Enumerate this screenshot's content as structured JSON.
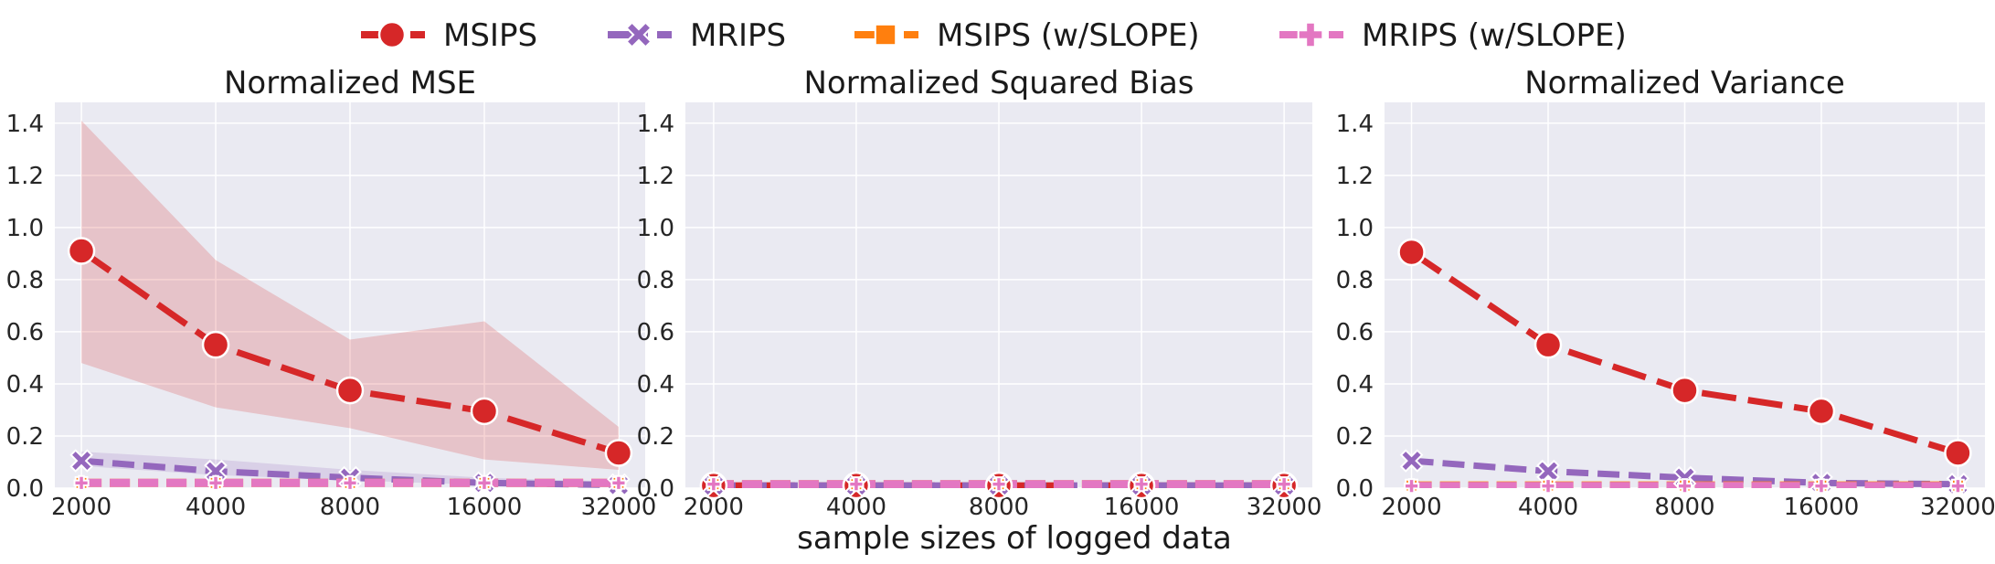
{
  "figure": {
    "xlabel": "sample sizes of logged data",
    "colors": {
      "background": "#ffffff",
      "panel": "#eaeaf2",
      "grid": "#ffffff",
      "msips": "#d62728",
      "mrips": "#9467bd",
      "msips_slope": "#ff7f0e",
      "mrips_slope": "#e377c2"
    }
  },
  "legend": {
    "placement": "top-center",
    "items": [
      {
        "label": "MSIPS",
        "marker": "circle",
        "color": "#d62728"
      },
      {
        "label": "MRIPS",
        "marker": "x",
        "color": "#9467bd"
      },
      {
        "label": "MSIPS (w/SLOPE)",
        "marker": "square",
        "color": "#ff7f0e"
      },
      {
        "label": "MRIPS (w/SLOPE)",
        "marker": "plus",
        "color": "#e377c2"
      }
    ]
  },
  "chart_data": [
    {
      "type": "line",
      "title": "Normalized MSE",
      "categories": [
        "2000",
        "4000",
        "8000",
        "16000",
        "32000"
      ],
      "ylim": [
        0,
        1.48
      ],
      "yticks": [
        "0.0",
        "0.2",
        "0.4",
        "0.6",
        "0.8",
        "1.0",
        "1.2",
        "1.4"
      ],
      "grid": true,
      "series": [
        {
          "name": "MSIPS",
          "values": [
            0.91,
            0.55,
            0.375,
            0.295,
            0.135
          ],
          "band_low": [
            0.48,
            0.31,
            0.23,
            0.11,
            0.07
          ],
          "band_high": [
            1.41,
            0.875,
            0.57,
            0.64,
            0.235
          ]
        },
        {
          "name": "MRIPS",
          "values": [
            0.105,
            0.065,
            0.04,
            0.02,
            0.012
          ],
          "band_low": [
            0.085,
            0.05,
            0.03,
            0.012,
            0.006
          ],
          "band_high": [
            0.14,
            0.11,
            0.07,
            0.04,
            0.025
          ]
        },
        {
          "name": "MSIPS (w/SLOPE)",
          "values": [
            0.02,
            0.02,
            0.02,
            0.02,
            0.02
          ]
        },
        {
          "name": "MRIPS (w/SLOPE)",
          "values": [
            0.02,
            0.02,
            0.02,
            0.02,
            0.02
          ]
        }
      ]
    },
    {
      "type": "line",
      "title": "Normalized Squared Bias",
      "categories": [
        "2000",
        "4000",
        "8000",
        "16000",
        "32000"
      ],
      "ylim": [
        0,
        1.48
      ],
      "yticks": [
        "0.0",
        "0.2",
        "0.4",
        "0.6",
        "0.8",
        "1.0",
        "1.2",
        "1.4"
      ],
      "grid": true,
      "series": [
        {
          "name": "MSIPS",
          "values": [
            0.01,
            0.01,
            0.01,
            0.01,
            0.01
          ]
        },
        {
          "name": "MRIPS",
          "values": [
            0.01,
            0.01,
            0.01,
            0.01,
            0.01
          ]
        },
        {
          "name": "MSIPS (w/SLOPE)",
          "values": [
            0.015,
            0.015,
            0.015,
            0.015,
            0.015
          ]
        },
        {
          "name": "MRIPS (w/SLOPE)",
          "values": [
            0.015,
            0.015,
            0.015,
            0.015,
            0.015
          ]
        }
      ]
    },
    {
      "type": "line",
      "title": "Normalized Variance",
      "categories": [
        "2000",
        "4000",
        "8000",
        "16000",
        "32000"
      ],
      "ylim": [
        0,
        1.48
      ],
      "yticks": [
        "0.0",
        "0.2",
        "0.4",
        "0.6",
        "0.8",
        "1.0",
        "1.2",
        "1.4"
      ],
      "grid": true,
      "series": [
        {
          "name": "MSIPS",
          "values": [
            0.905,
            0.55,
            0.375,
            0.295,
            0.135
          ]
        },
        {
          "name": "MRIPS",
          "values": [
            0.105,
            0.065,
            0.04,
            0.02,
            0.015
          ]
        },
        {
          "name": "MSIPS (w/SLOPE)",
          "values": [
            0.01,
            0.01,
            0.01,
            0.01,
            0.01
          ]
        },
        {
          "name": "MRIPS (w/SLOPE)",
          "values": [
            0.008,
            0.008,
            0.008,
            0.008,
            0.008
          ]
        }
      ]
    }
  ]
}
